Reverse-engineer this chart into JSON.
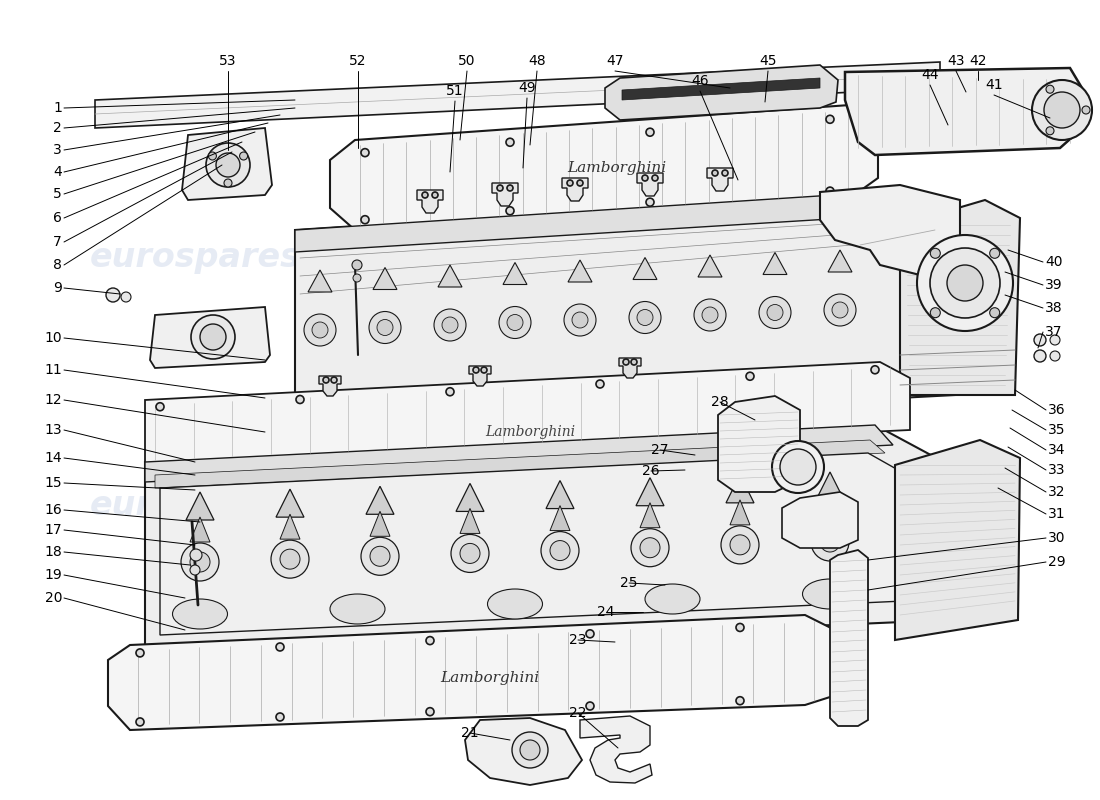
{
  "bg_color": "#ffffff",
  "wm_color": "#c8d4e8",
  "wm_alpha": 0.45,
  "line_color": "#1a1a1a",
  "label_fontsize": 10,
  "lw_main": 1.2,
  "lw_thin": 0.7,
  "lw_thick": 2.0,
  "part_fill": "#ffffff",
  "part_shade": "#e8e8e8",
  "part_dark": "#d0d0d0",
  "labels_left": [
    [
      "1",
      62,
      108
    ],
    [
      "2",
      62,
      128
    ],
    [
      "3",
      62,
      150
    ],
    [
      "4",
      62,
      172
    ],
    [
      "5",
      62,
      194
    ],
    [
      "6",
      62,
      218
    ],
    [
      "7",
      62,
      242
    ],
    [
      "8",
      62,
      265
    ],
    [
      "9",
      62,
      288
    ],
    [
      "10",
      62,
      338
    ],
    [
      "11",
      62,
      370
    ],
    [
      "12",
      62,
      400
    ],
    [
      "13",
      62,
      430
    ],
    [
      "14",
      62,
      458
    ],
    [
      "15",
      62,
      483
    ],
    [
      "16",
      62,
      510
    ],
    [
      "17",
      62,
      530
    ],
    [
      "18",
      62,
      552
    ],
    [
      "19",
      62,
      575
    ],
    [
      "20",
      62,
      598
    ]
  ],
  "labels_top": [
    [
      "53",
      228,
      68
    ],
    [
      "52",
      358,
      68
    ],
    [
      "50",
      467,
      68
    ],
    [
      "51",
      455,
      98
    ],
    [
      "48",
      537,
      68
    ],
    [
      "49",
      527,
      95
    ],
    [
      "47",
      615,
      68
    ],
    [
      "46",
      700,
      88
    ],
    [
      "45",
      768,
      68
    ],
    [
      "44",
      930,
      82
    ],
    [
      "43",
      956,
      68
    ],
    [
      "42",
      978,
      68
    ],
    [
      "41",
      994,
      92
    ]
  ],
  "labels_right_top": [
    [
      "40",
      1045,
      262
    ],
    [
      "39",
      1045,
      285
    ],
    [
      "38",
      1045,
      308
    ],
    [
      "37",
      1045,
      332
    ]
  ],
  "labels_right_bot": [
    [
      "36",
      1048,
      410
    ],
    [
      "35",
      1048,
      430
    ],
    [
      "34",
      1048,
      450
    ],
    [
      "33",
      1048,
      470
    ],
    [
      "32",
      1048,
      492
    ],
    [
      "31",
      1048,
      514
    ],
    [
      "30",
      1048,
      538
    ],
    [
      "29",
      1048,
      562
    ]
  ],
  "labels_mid": [
    [
      "28",
      720,
      402
    ],
    [
      "27",
      660,
      450
    ],
    [
      "26",
      651,
      471
    ],
    [
      "25",
      629,
      583
    ],
    [
      "24",
      606,
      612
    ],
    [
      "23",
      578,
      640
    ],
    [
      "22",
      578,
      713
    ],
    [
      "21",
      470,
      733
    ]
  ]
}
